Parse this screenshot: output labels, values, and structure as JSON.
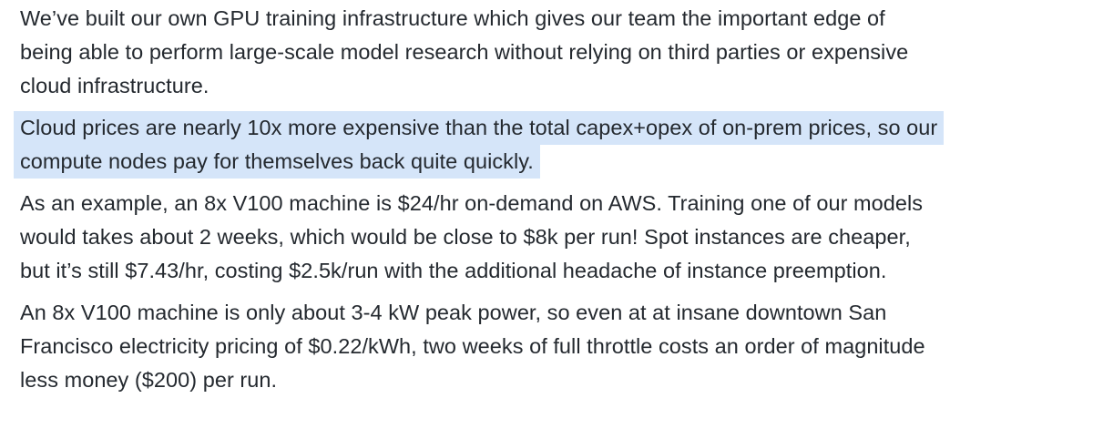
{
  "paragraphs": [
    {
      "id": "intro",
      "highlighted": false,
      "lines": [
        "We’ve built our own GPU training infrastructure which gives our team the important edge of",
        "being able to perform large-scale model research without relying on third parties or expensive",
        "cloud infrastructure."
      ]
    },
    {
      "id": "cloud-prices",
      "highlighted": true,
      "highlight_color": "#d5e5f9",
      "lines": [
        "Cloud prices are nearly 10x more expensive than the total capex+opex of on-prem prices, so our",
        "compute nodes pay for themselves back quite quickly."
      ]
    },
    {
      "id": "aws-example",
      "highlighted": false,
      "lines": [
        "As an example, an 8x V100 machine is $24/hr on-demand on AWS. Training one of our models",
        "would takes about 2 weeks, which would be close to $8k per run! Spot instances are cheaper,",
        "but it’s still $7.43/hr, costing $2.5k/run with the additional headache of instance preemption."
      ]
    },
    {
      "id": "power-cost",
      "highlighted": false,
      "lines": [
        "An 8x V100 machine is only about 3-4 kW peak power, so even at at insane downtown San",
        "Francisco electricity pricing of $0.22/kWh, two weeks of full throttle costs an order of magnitude",
        "less money ($200) per run."
      ]
    }
  ]
}
